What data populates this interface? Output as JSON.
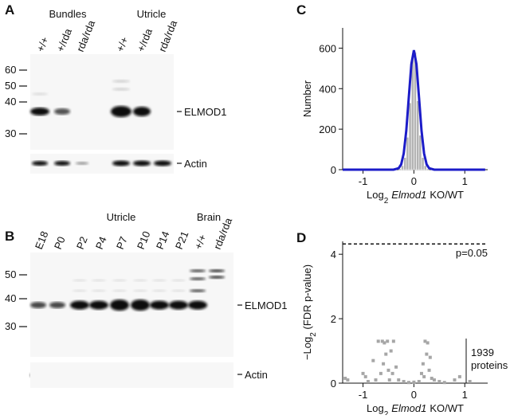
{
  "panels": {
    "A": {
      "label": "A",
      "groups": [
        "Bundles",
        "Utricle"
      ],
      "lanes": [
        "+/+",
        "+/rda",
        "rda/rda",
        "+/+",
        "+/rda",
        "rda/rda"
      ],
      "markers": [
        "60",
        "50",
        "40",
        "30"
      ],
      "bands": [
        "ELMOD1",
        "Actin"
      ]
    },
    "B": {
      "label": "B",
      "groups": [
        "Utricle",
        "Brain"
      ],
      "lanes": [
        "E18",
        "P0",
        "P2",
        "P4",
        "P7",
        "P10",
        "P14",
        "P21",
        "+/+",
        "rda/rda"
      ],
      "markers": [
        "50",
        "40",
        "30"
      ],
      "bands": [
        "ELMOD1",
        "Actin"
      ]
    }
  },
  "chart_data": [
    {
      "type": "histogram",
      "panel_label": "C",
      "color": "#b3b3b3",
      "bins": [
        -0.3,
        -0.25,
        -0.2,
        -0.15,
        -0.1,
        -0.05,
        0,
        0.05,
        0.1,
        0.15,
        0.2,
        0.25,
        0.3
      ],
      "counts": [
        5,
        20,
        60,
        160,
        330,
        560,
        580,
        340,
        170,
        60,
        20,
        5
      ],
      "fit": {
        "color": "#1c1cc8",
        "x": [
          -1.4,
          -0.4,
          -0.3,
          -0.25,
          -0.2,
          -0.15,
          -0.1,
          -0.05,
          0,
          0.05,
          0.1,
          0.15,
          0.2,
          0.25,
          0.3,
          0.4,
          1.4
        ],
        "values": [
          0,
          0,
          7,
          26,
          80,
          192,
          358,
          521,
          590,
          521,
          358,
          192,
          80,
          26,
          7,
          0,
          0
        ]
      },
      "xlim": [
        -1.4,
        1.45
      ],
      "xticks": [
        -1,
        0,
        1
      ],
      "ylim": [
        0,
        700
      ],
      "yticks": [
        0,
        200,
        400,
        600
      ],
      "y_label": "Number",
      "x_label": [
        "Log",
        "2",
        "Elmod1",
        "KO/WT"
      ]
    },
    {
      "type": "scatter",
      "panel_label": "D",
      "color": "#a6a6a6",
      "x": [
        -1.35,
        -1.3,
        -1.0,
        -0.95,
        -0.9,
        -0.8,
        -0.75,
        -0.7,
        -0.65,
        -0.62,
        -0.6,
        -0.58,
        -0.55,
        -0.52,
        -0.5,
        -0.48,
        -0.45,
        -0.42,
        -0.4,
        -0.35,
        -0.3,
        -0.2,
        -0.1,
        0.0,
        0.1,
        0.15,
        0.18,
        0.2,
        0.22,
        0.25,
        0.27,
        0.3,
        0.32,
        0.35,
        0.4,
        0.5,
        0.6,
        0.8,
        0.9,
        1.1
      ],
      "values": [
        0.15,
        0.1,
        0.3,
        0.2,
        0.05,
        0.7,
        0.1,
        1.3,
        0.3,
        1.3,
        0.6,
        1.25,
        0.9,
        1.3,
        0.4,
        0.1,
        1.0,
        0.3,
        1.3,
        0.5,
        0.1,
        0.05,
        0.02,
        0.03,
        0.05,
        0.3,
        0.6,
        0.2,
        1.3,
        0.9,
        1.25,
        0.4,
        0.8,
        0.15,
        0.1,
        0.05,
        0.02,
        0.1,
        0.2,
        0.05
      ],
      "threshold": 4.32,
      "threshold_label": "p=0.05",
      "count_label": [
        "1939",
        "proteins"
      ],
      "xlim": [
        -1.4,
        1.45
      ],
      "xticks": [
        -1,
        0,
        1
      ],
      "ylim": [
        0,
        4.4
      ],
      "yticks": [
        0,
        2,
        4
      ],
      "y_label": [
        "−Log",
        "2",
        " (FDR p-value)"
      ],
      "x_label": [
        "Log",
        "2",
        "Elmod1",
        "KO/WT"
      ]
    }
  ]
}
